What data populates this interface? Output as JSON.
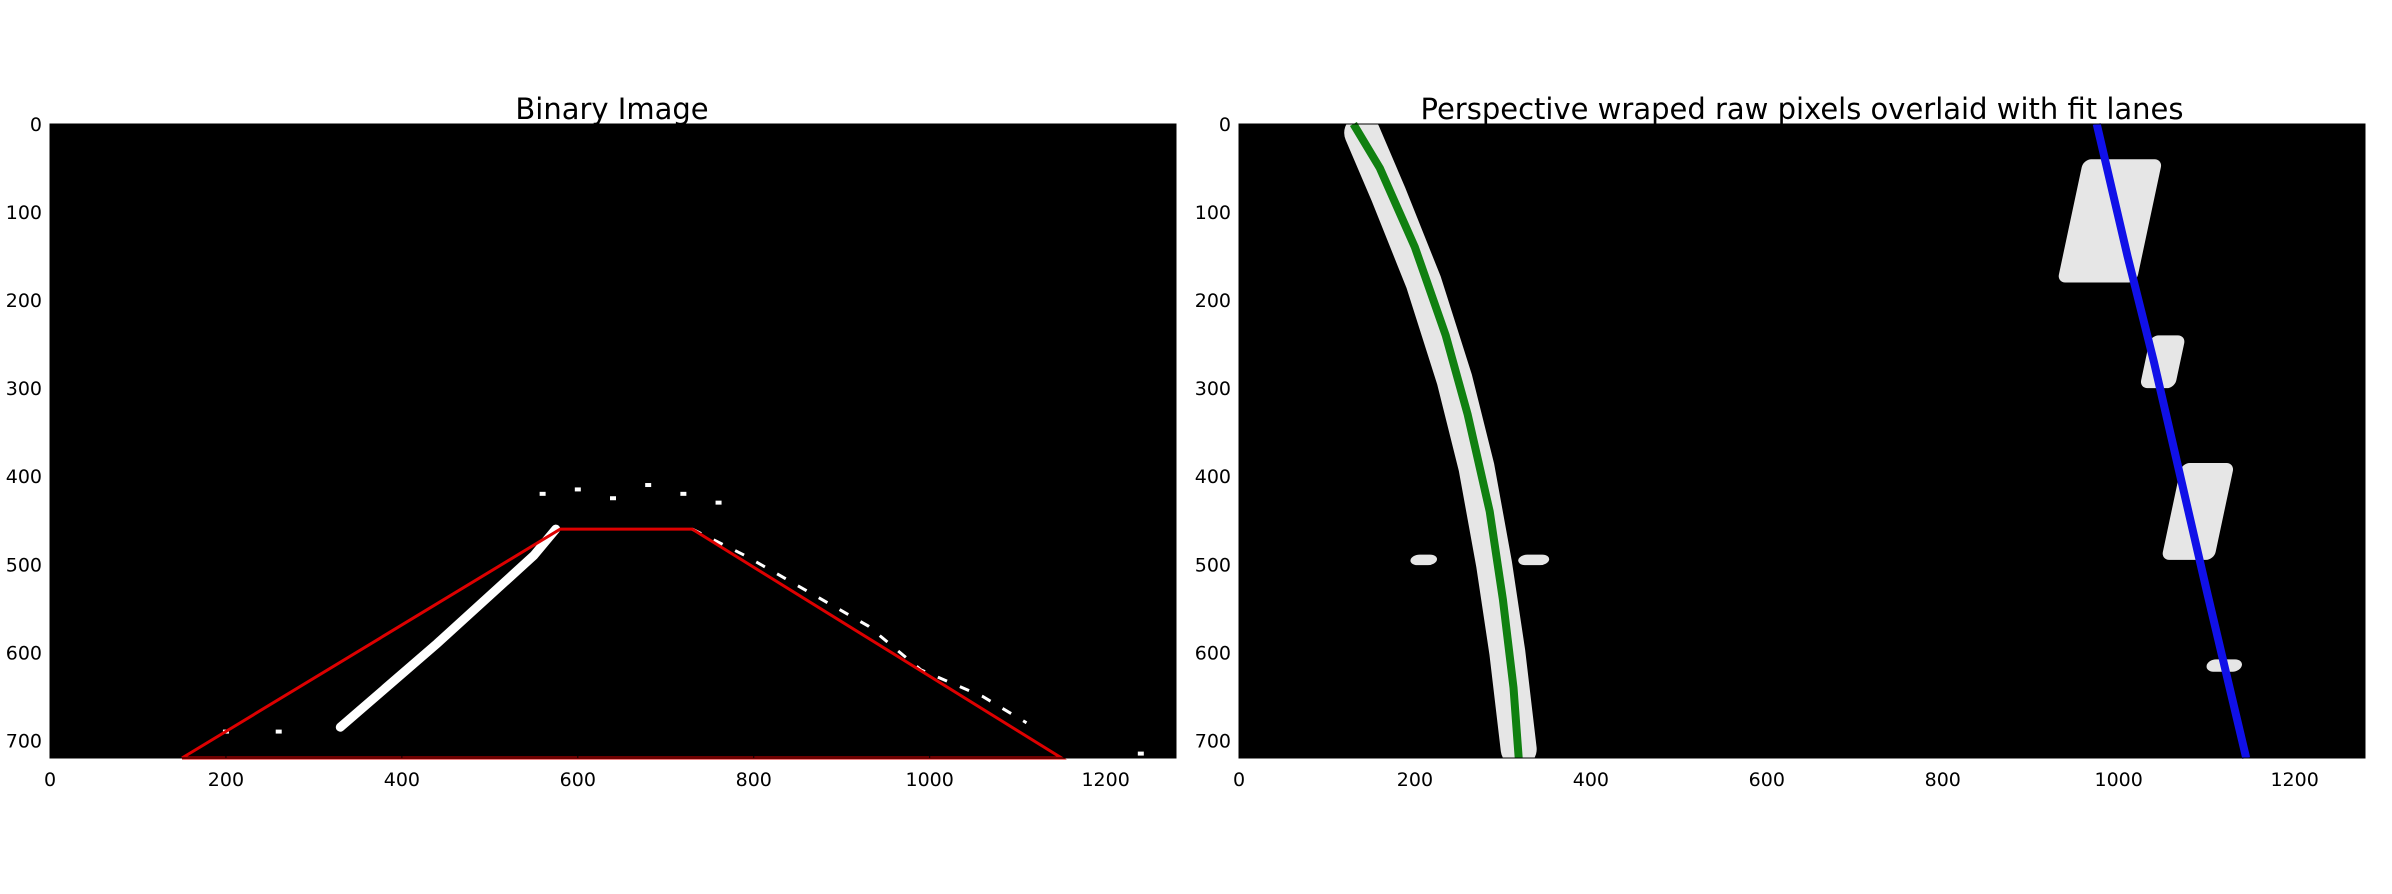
{
  "chart_data": [
    {
      "type": "image",
      "title": "Binary Image",
      "xlim": [
        0,
        1280
      ],
      "ylim": [
        720,
        0
      ],
      "xticks": [
        0,
        200,
        400,
        600,
        800,
        1000,
        1200
      ],
      "yticks": [
        0,
        100,
        200,
        300,
        400,
        500,
        600,
        700
      ],
      "background_color": "#000000",
      "pixel_color": "#ffffff",
      "overlay_color": "#dd0000",
      "region_of_interest": {
        "x": [
          150,
          580,
          730,
          1150,
          150
        ],
        "y": [
          720,
          460,
          460,
          720,
          720
        ]
      },
      "lane_pixels_left": {
        "x": [
          330,
          440,
          550,
          575
        ],
        "y": [
          685,
          590,
          490,
          460
        ]
      },
      "lane_pixels_right": {
        "x": [
          730,
          790,
          860,
          930,
          990,
          1060,
          1110
        ],
        "y": [
          460,
          490,
          530,
          570,
          620,
          650,
          680
        ]
      },
      "speckles": {
        "x": [
          560,
          600,
          640,
          680,
          720,
          760,
          200,
          260,
          1240
        ],
        "y": [
          420,
          415,
          425,
          410,
          420,
          430,
          690,
          690,
          715
        ]
      }
    },
    {
      "type": "image",
      "title": "Perspective wraped raw pixels overlaid with fit lanes",
      "xlim": [
        0,
        1280
      ],
      "ylim": [
        720,
        0
      ],
      "xticks": [
        0,
        200,
        400,
        600,
        800,
        1000,
        1200
      ],
      "yticks": [
        0,
        100,
        200,
        300,
        400,
        500,
        600,
        700
      ],
      "background_color": "#000000",
      "pixel_color": "#ffffff",
      "left_fit": {
        "color": "#108010",
        "x": [
          130,
          160,
          200,
          235,
          260,
          285,
          300,
          312,
          318
        ],
        "y": [
          0,
          50,
          140,
          240,
          330,
          440,
          540,
          640,
          720
        ]
      },
      "right_fit": {
        "color": "#1010e8",
        "x": [
          975,
          1010,
          1040,
          1070,
          1100,
          1145
        ],
        "y": [
          0,
          150,
          270,
          400,
          530,
          720
        ]
      },
      "left_pixels": {
        "x": [
          140,
          170,
          210,
          245,
          270,
          290,
          305,
          318
        ],
        "y": [
          10,
          80,
          180,
          290,
          390,
          500,
          600,
          710
        ]
      },
      "right_blobs": [
        {
          "x": 990,
          "y": 110,
          "w": 90,
          "h": 140
        },
        {
          "x": 1050,
          "y": 270,
          "w": 40,
          "h": 60
        },
        {
          "x": 1090,
          "y": 440,
          "w": 60,
          "h": 110
        },
        {
          "x": 1120,
          "y": 615,
          "w": 40,
          "h": 14
        }
      ],
      "small_blobs": [
        {
          "x": 210,
          "y": 495,
          "w": 30,
          "h": 12
        },
        {
          "x": 335,
          "y": 495,
          "w": 35,
          "h": 12
        }
      ]
    }
  ]
}
